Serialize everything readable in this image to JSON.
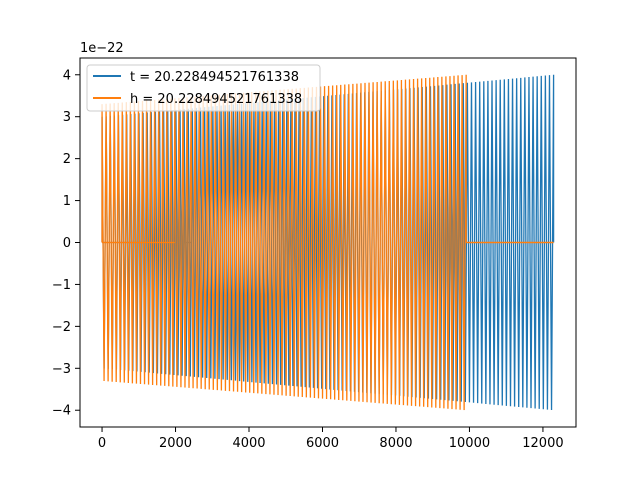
{
  "chart_data": {
    "type": "line",
    "title": "",
    "xlabel": "",
    "ylabel": "",
    "y_offset_text": "1e−22",
    "xlim": [
      -600,
      12900
    ],
    "ylim": [
      -4.4,
      4.4
    ],
    "x_ticks": [
      0,
      2000,
      4000,
      6000,
      8000,
      10000,
      12000
    ],
    "x_tick_labels": [
      "0",
      "2000",
      "4000",
      "6000",
      "8000",
      "10000",
      "12000"
    ],
    "y_ticks": [
      -4,
      -3,
      -2,
      -1,
      0,
      1,
      2,
      3,
      4
    ],
    "y_tick_labels": [
      "−4",
      "−3",
      "−2",
      "−1",
      "0",
      "1",
      "2",
      "3",
      "4"
    ],
    "grid": false,
    "legend_position": "top-left",
    "series": [
      {
        "name": "t = 20.228494521761338",
        "color": "#1f77b4",
        "x_range": [
          0,
          12290
        ],
        "amplitude_start": 3.0,
        "amplitude_end": 4.0,
        "cycles": 110
      },
      {
        "name": "h = 20.228494521761338",
        "color": "#ff7f0e",
        "x_range": [
          0,
          9910
        ],
        "amplitude_start": 3.3,
        "amplitude_end": 4.0,
        "cycles": 90,
        "zero_after": 9910,
        "zero_until": 12290
      }
    ]
  }
}
